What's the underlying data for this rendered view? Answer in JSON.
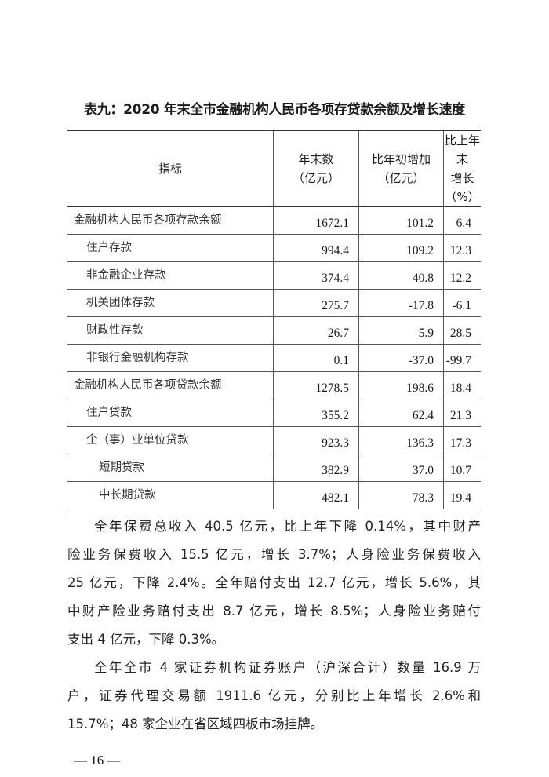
{
  "title": "表九：2020 年末全市金融机构人民币各项存贷款余额及增长速度",
  "table": {
    "headers": {
      "indicator": "指标",
      "year_end_1": "年末数",
      "year_end_2": "（亿元）",
      "increase_1": "比年初增加",
      "increase_2": "（亿元）",
      "growth_1": "比上年末",
      "growth_2": "增长（%）"
    },
    "rows": [
      {
        "label": "金融机构人民币各项存款余额",
        "level": 0,
        "year_end": "1672.1",
        "increase": "101.2",
        "growth": "6.4"
      },
      {
        "label": "住户存款",
        "level": 1,
        "year_end": "994.4",
        "increase": "109.2",
        "growth": "12.3"
      },
      {
        "label": "非金融企业存款",
        "level": 1,
        "year_end": "374.4",
        "increase": "40.8",
        "growth": "12.2"
      },
      {
        "label": "机关团体存款",
        "level": 1,
        "year_end": "275.7",
        "increase": "-17.8",
        "growth": "-6.1"
      },
      {
        "label": "财政性存款",
        "level": 1,
        "year_end": "26.7",
        "increase": "5.9",
        "growth": "28.5"
      },
      {
        "label": "非银行金融机构存款",
        "level": 1,
        "year_end": "0.1",
        "increase": "-37.0",
        "growth": "-99.7"
      },
      {
        "label": "金融机构人民币各项贷款余额",
        "level": 0,
        "year_end": "1278.5",
        "increase": "198.6",
        "growth": "18.4"
      },
      {
        "label": "住户贷款",
        "level": 1,
        "year_end": "355.2",
        "increase": "62.4",
        "growth": "21.3"
      },
      {
        "label": "企（事）业单位贷款",
        "level": 1,
        "year_end": "923.3",
        "increase": "136.3",
        "growth": "17.3"
      },
      {
        "label": "短期贷款",
        "level": 2,
        "year_end": "382.9",
        "increase": "37.0",
        "growth": "10.7"
      },
      {
        "label": "中长期贷款",
        "level": 2,
        "year_end": "482.1",
        "increase": "78.3",
        "growth": "19.4"
      }
    ]
  },
  "paragraphs": [
    {
      "lines": [
        "全年保费总收入 40.5 亿元，比上年下降 0.14%，其中财产",
        "险业务保费收入 15.5 亿元，增长 3.7%；人身险业务保费收入",
        "25 亿元，下降 2.4%。全年赔付支出 12.7 亿元，增长 5.6%，其",
        "中财产险业务赔付支出 8.7 亿元，增长 8.5%；人身险业务赔付",
        "支出 4 亿元，下降 0.3%。"
      ]
    },
    {
      "lines": [
        "全年全市 4 家证券机构证券账户（沪深合计）数量 16.9 万",
        "户，证券代理交易额 1911.6 亿元，分别比上年增长 2.6%和",
        "15.7%；48 家企业在省区域四板市场挂牌。"
      ]
    }
  ],
  "page_number": "— 16 —"
}
